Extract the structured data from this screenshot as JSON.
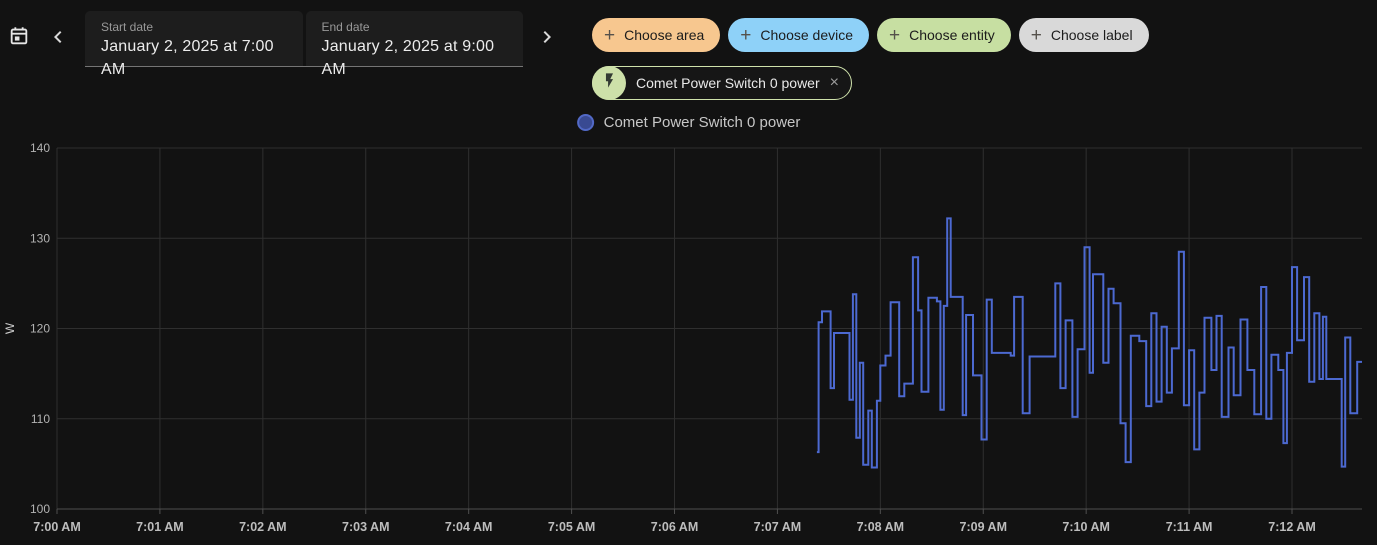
{
  "colors": {
    "background": "#121212",
    "panel": "#1d1d1d",
    "gridline": "#2f2f2f",
    "axis_line": "#4f4f4f",
    "tick_label": "#bdbdbd",
    "series_line": "#4c69d1",
    "legend_fill": "#394a92",
    "chip_area": "#f7c78f",
    "chip_device": "#8ed1f8",
    "chip_entity": "#c7dfa2",
    "chip_label": "#d9d9d9",
    "entity_chip_border": "#cfe2ab"
  },
  "icons": {
    "add": "+",
    "close": "×"
  },
  "date_range": {
    "start": {
      "label": "Start date",
      "value": "January 2, 2025 at 7:00 AM"
    },
    "end": {
      "label": "End date",
      "value": "January 2, 2025 at 9:00 AM"
    }
  },
  "filters": {
    "chips": [
      {
        "id": "area",
        "label": "Choose area",
        "color": "#f7c78f"
      },
      {
        "id": "device",
        "label": "Choose device",
        "color": "#8ed1f8"
      },
      {
        "id": "entity",
        "label": "Choose entity",
        "color": "#c7dfa2"
      },
      {
        "id": "label",
        "label": "Choose label",
        "color": "#d9d9d9"
      }
    ],
    "selected_entity": {
      "label": "Comet Power Switch 0 power"
    }
  },
  "legend": {
    "label": "Comet Power Switch 0 power"
  },
  "chart_data": {
    "type": "line",
    "step": "after",
    "title": "",
    "xlabel": "",
    "ylabel": "W",
    "ylim": [
      100,
      140
    ],
    "y_ticks": [
      100,
      110,
      120,
      130,
      140
    ],
    "x_ticks": [
      {
        "min": 0,
        "label": "7:00 AM"
      },
      {
        "min": 1,
        "label": "7:01 AM"
      },
      {
        "min": 2,
        "label": "7:02 AM"
      },
      {
        "min": 3,
        "label": "7:03 AM"
      },
      {
        "min": 4,
        "label": "7:04 AM"
      },
      {
        "min": 5,
        "label": "7:05 AM"
      },
      {
        "min": 6,
        "label": "7:06 AM"
      },
      {
        "min": 7,
        "label": "7:07 AM"
      },
      {
        "min": 8,
        "label": "7:08 AM"
      },
      {
        "min": 9,
        "label": "7:09 AM"
      },
      {
        "min": 10,
        "label": "7:10 AM"
      },
      {
        "min": 11,
        "label": "7:11 AM"
      },
      {
        "min": 12,
        "label": "7:12 AM"
      }
    ],
    "x_range_minutes": [
      0,
      12.69
    ],
    "grid": true,
    "legend_position": "top-center",
    "series": [
      {
        "name": "Comet Power Switch 0 power",
        "unit": "W",
        "color": "#4c69d1",
        "points_format": "[seconds_after_7:00_AM, watts]",
        "points": [
          [
            443,
            106.3
          ],
          [
            444,
            120.7
          ],
          [
            446,
            121.9
          ],
          [
            451,
            113.4
          ],
          [
            453,
            119.5
          ],
          [
            462,
            112.1
          ],
          [
            464,
            123.8
          ],
          [
            466,
            107.9
          ],
          [
            468,
            116.2
          ],
          [
            470,
            104.9
          ],
          [
            473,
            110.9
          ],
          [
            475,
            104.6
          ],
          [
            478,
            112.0
          ],
          [
            480,
            115.9
          ],
          [
            483,
            117.0
          ],
          [
            486,
            122.9
          ],
          [
            491,
            112.5
          ],
          [
            494,
            113.9
          ],
          [
            499,
            127.9
          ],
          [
            502,
            122.0
          ],
          [
            504,
            113.0
          ],
          [
            508,
            123.4
          ],
          [
            513,
            123.0
          ],
          [
            515,
            111.0
          ],
          [
            517,
            122.5
          ],
          [
            519,
            132.2
          ],
          [
            521,
            123.5
          ],
          [
            528,
            110.4
          ],
          [
            530,
            121.5
          ],
          [
            534,
            114.8
          ],
          [
            539,
            107.7
          ],
          [
            542,
            123.2
          ],
          [
            545,
            117.3
          ],
          [
            556,
            117.0
          ],
          [
            558,
            123.5
          ],
          [
            563,
            110.6
          ],
          [
            567,
            116.9
          ],
          [
            582,
            125.0
          ],
          [
            585,
            113.4
          ],
          [
            588,
            120.9
          ],
          [
            592,
            110.2
          ],
          [
            595,
            117.7
          ],
          [
            599,
            129.0
          ],
          [
            602,
            115.1
          ],
          [
            604,
            126.0
          ],
          [
            610,
            116.2
          ],
          [
            613,
            124.4
          ],
          [
            616,
            122.8
          ],
          [
            620,
            109.5
          ],
          [
            623,
            105.2
          ],
          [
            626,
            119.2
          ],
          [
            631,
            118.6
          ],
          [
            635,
            111.4
          ],
          [
            638,
            121.7
          ],
          [
            641,
            111.9
          ],
          [
            644,
            120.2
          ],
          [
            647,
            112.9
          ],
          [
            650,
            117.8
          ],
          [
            654,
            128.5
          ],
          [
            657,
            111.5
          ],
          [
            660,
            117.6
          ],
          [
            663,
            106.6
          ],
          [
            666,
            112.9
          ],
          [
            669,
            121.2
          ],
          [
            673,
            115.4
          ],
          [
            676,
            121.4
          ],
          [
            679,
            110.2
          ],
          [
            683,
            117.9
          ],
          [
            686,
            112.6
          ],
          [
            690,
            121.0
          ],
          [
            694,
            115.4
          ],
          [
            698,
            110.5
          ],
          [
            702,
            124.6
          ],
          [
            705,
            110.0
          ],
          [
            708,
            117.1
          ],
          [
            712,
            115.4
          ],
          [
            715,
            107.3
          ],
          [
            717,
            117.3
          ],
          [
            720,
            126.8
          ],
          [
            723,
            118.7
          ],
          [
            727,
            125.7
          ],
          [
            730,
            114.1
          ],
          [
            733,
            121.7
          ],
          [
            736,
            114.4
          ],
          [
            738,
            121.3
          ],
          [
            740,
            114.4
          ],
          [
            749,
            104.7
          ],
          [
            751,
            119.0
          ],
          [
            754,
            110.6
          ],
          [
            758,
            116.3
          ],
          [
            761,
            116.3
          ]
        ]
      }
    ]
  }
}
